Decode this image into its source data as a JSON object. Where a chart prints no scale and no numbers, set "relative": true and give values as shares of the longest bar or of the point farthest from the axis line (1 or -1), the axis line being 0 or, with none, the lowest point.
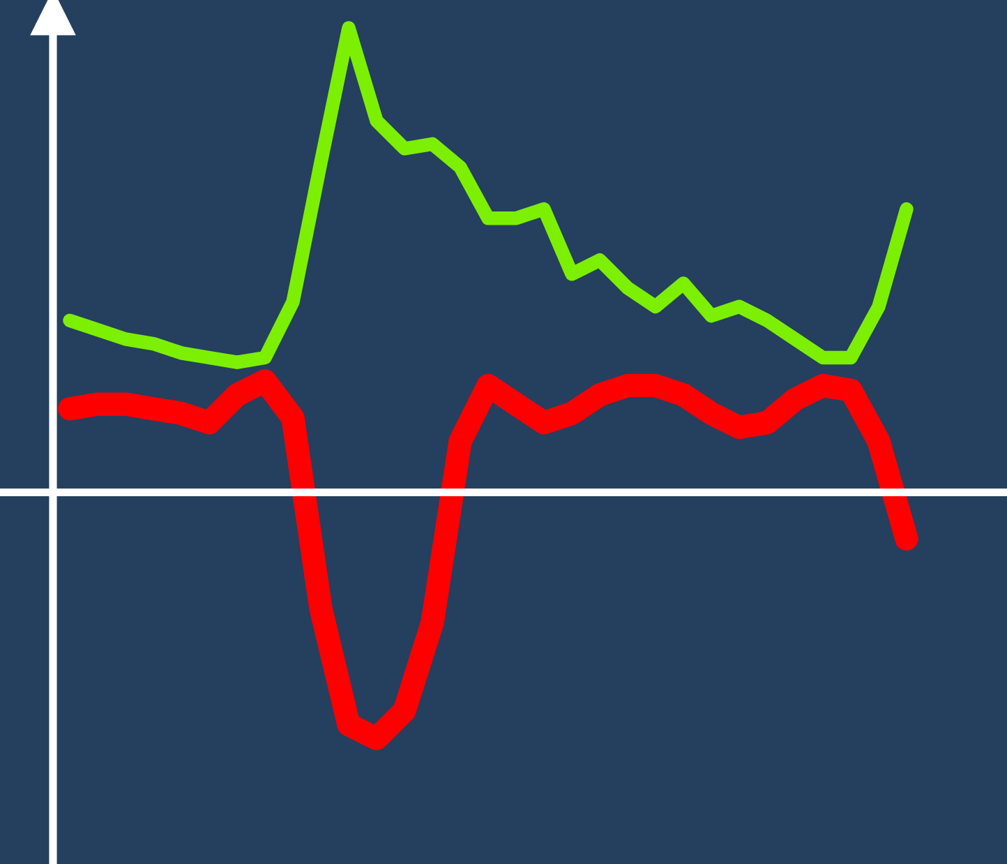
{
  "chart_data": {
    "type": "line",
    "relative": true,
    "categories": [
      null,
      null,
      null,
      null,
      null,
      null,
      null,
      null,
      null,
      null,
      null,
      null,
      null,
      null,
      null,
      null,
      null,
      null,
      null,
      null,
      null,
      null,
      null,
      null,
      null,
      null,
      null,
      null,
      null,
      null,
      null
    ],
    "series": [
      {
        "color": "#7cf000",
        "values": [
          0.37,
          0.35,
          0.33,
          0.32,
          0.3,
          0.29,
          0.28,
          0.29,
          0.41,
          0.71,
          1,
          0.8,
          0.74,
          0.75,
          0.7,
          0.59,
          0.59,
          0.61,
          0.47,
          0.5,
          0.44,
          0.4,
          0.45,
          0.38,
          0.4,
          0.37,
          0.33,
          0.29,
          0.29,
          0.4,
          0.61
        ]
      },
      {
        "color": "#ff0000",
        "values": [
          0.18,
          0.19,
          0.19,
          0.18,
          0.17,
          0.15,
          0.21,
          0.24,
          0.16,
          -0.25,
          -0.5,
          -0.53,
          -0.47,
          -0.28,
          0.11,
          0.23,
          0.19,
          0.15,
          0.17,
          0.21,
          0.23,
          0.23,
          0.21,
          0.17,
          0.14,
          0.15,
          0.2,
          0.23,
          0.22,
          0.11,
          -0.1
        ]
      }
    ]
  }
}
